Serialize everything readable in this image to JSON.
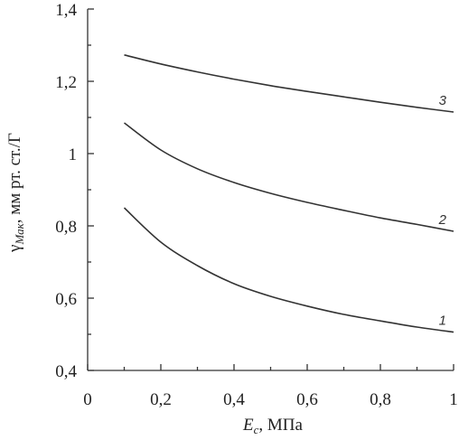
{
  "chart_data": {
    "type": "line",
    "title": "",
    "xlabel_main": "E",
    "xlabel_sub": "c",
    "xlabel_rest": ", МПа",
    "ylabel_main": "γ",
    "ylabel_sub": "Мак",
    "ylabel_rest": ", мм рт. ст./Г",
    "xlim": [
      0,
      1
    ],
    "ylim": [
      0.4,
      1.4
    ],
    "x_ticks": [
      0,
      0.2,
      0.4,
      0.6,
      0.8,
      1
    ],
    "x_tick_labels": [
      "0",
      "0,2",
      "0,4",
      "0,6",
      "0,8",
      "1"
    ],
    "y_ticks": [
      0.4,
      0.6,
      0.8,
      1.0,
      1.2,
      1.4
    ],
    "y_tick_labels": [
      "0,4",
      "0,6",
      "0,8",
      "1",
      "1,2",
      "1,4"
    ],
    "grid": false,
    "series": [
      {
        "name": "1",
        "x": [
          0.1,
          0.2,
          0.3,
          0.4,
          0.5,
          0.6,
          0.7,
          0.8,
          0.9,
          1.0
        ],
        "values": [
          0.85,
          0.755,
          0.69,
          0.64,
          0.605,
          0.578,
          0.555,
          0.537,
          0.52,
          0.506
        ]
      },
      {
        "name": "2",
        "x": [
          0.1,
          0.2,
          0.3,
          0.4,
          0.5,
          0.6,
          0.7,
          0.8,
          0.9,
          1.0
        ],
        "values": [
          1.085,
          1.01,
          0.958,
          0.92,
          0.89,
          0.865,
          0.843,
          0.822,
          0.804,
          0.785
        ]
      },
      {
        "name": "3",
        "x": [
          0.1,
          0.2,
          0.3,
          0.4,
          0.5,
          0.6,
          0.7,
          0.8,
          0.9,
          1.0
        ],
        "values": [
          1.273,
          1.248,
          1.226,
          1.206,
          1.188,
          1.172,
          1.157,
          1.142,
          1.128,
          1.115
        ]
      }
    ]
  }
}
